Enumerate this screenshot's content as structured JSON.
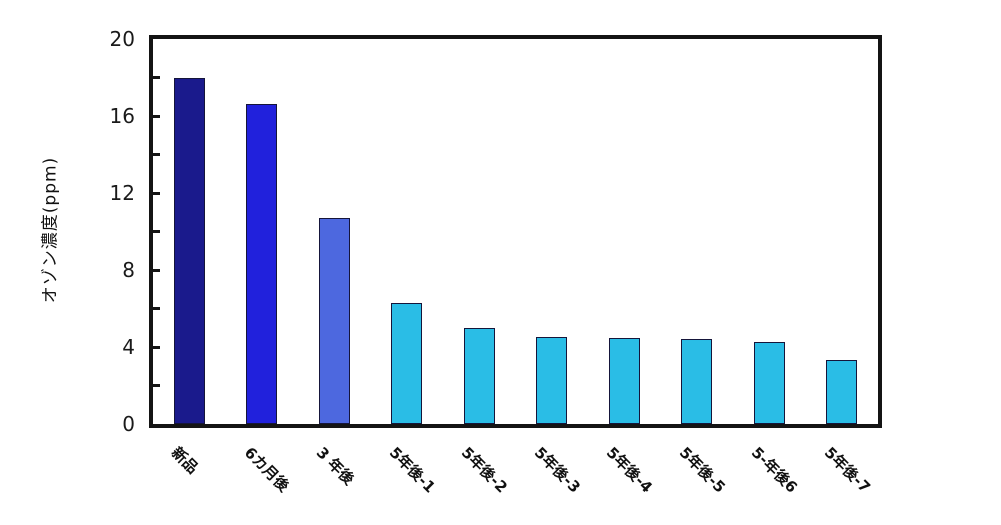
{
  "chart_data": {
    "type": "bar",
    "title": "",
    "xlabel": "",
    "ylabel": "オゾン濃度(ppm)",
    "ylim": [
      0,
      20
    ],
    "y_major_ticks": [
      0,
      4,
      8,
      12,
      16,
      20
    ],
    "y_minor_tick_step": 2,
    "grid": "off",
    "legend": "none",
    "categories": [
      "新品",
      "6カ月後",
      "3 年後",
      "5年後-1",
      "5年後-2",
      "5年後-3",
      "5年後-4",
      "5年後-5",
      "5-年後6",
      "5年後-7"
    ],
    "values": [
      18,
      16.6,
      10.7,
      6.3,
      5,
      4.5,
      4.45,
      4.4,
      4.25,
      3.3
    ],
    "bar_colors": [
      "#1A1A8C",
      "#2121DC",
      "#4D68DF",
      "#2ABDE6",
      "#2ABDE6",
      "#2ABDE6",
      "#2ABDE6",
      "#2ABDE6",
      "#2ABDE6",
      "#2ABDE6"
    ]
  },
  "colors": {
    "frame": "#141414",
    "bar_outline": "#15153a",
    "background": "#ffffff",
    "text": "#1a1a1a"
  }
}
